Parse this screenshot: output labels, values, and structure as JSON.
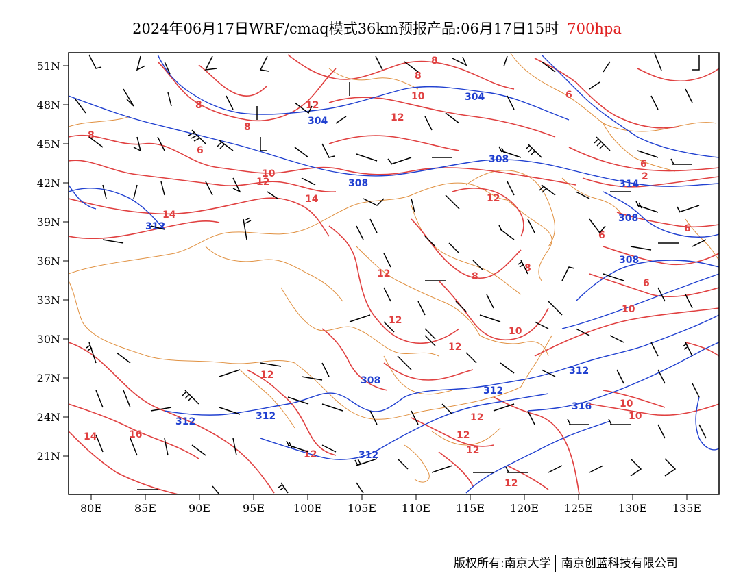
{
  "header": {
    "title": "2024年06月17日WRF/cmaq模式36km预报产品:06月17日15时",
    "level": "700hpa",
    "level_color": "#e02020"
  },
  "map": {
    "lon_ticks": [
      "80E",
      "85E",
      "90E",
      "95E",
      "100E",
      "105E",
      "110E",
      "115E",
      "120E",
      "125E",
      "130E",
      "135E"
    ],
    "lat_ticks": [
      "51N",
      "48N",
      "45N",
      "42N",
      "39N",
      "36N",
      "33N",
      "30N",
      "27N",
      "24N",
      "21N"
    ],
    "colors": {
      "temperature_contour": "#e04040",
      "height_contour": "#2040d0",
      "boundary": "#e09040",
      "wind_barb": "#000000"
    },
    "temperature_labels": [
      "8",
      "8",
      "8",
      "6",
      "10",
      "12",
      "14",
      "12",
      "14",
      "16",
      "14",
      "12",
      "12",
      "12",
      "12",
      "10",
      "8",
      "8",
      "12",
      "12",
      "12",
      "12",
      "12",
      "10",
      "10",
      "12",
      "12",
      "10",
      "6",
      "6",
      "6",
      "8",
      "8",
      "6",
      "2",
      "6",
      "10"
    ],
    "height_labels": [
      "304",
      "304",
      "308",
      "308",
      "312",
      "308",
      "308",
      "312",
      "312",
      "312",
      "312",
      "308",
      "316",
      "312",
      "314"
    ]
  },
  "footer": {
    "left": "版权所有:南京大学",
    "right": "南京创蓝科技有限公司"
  }
}
